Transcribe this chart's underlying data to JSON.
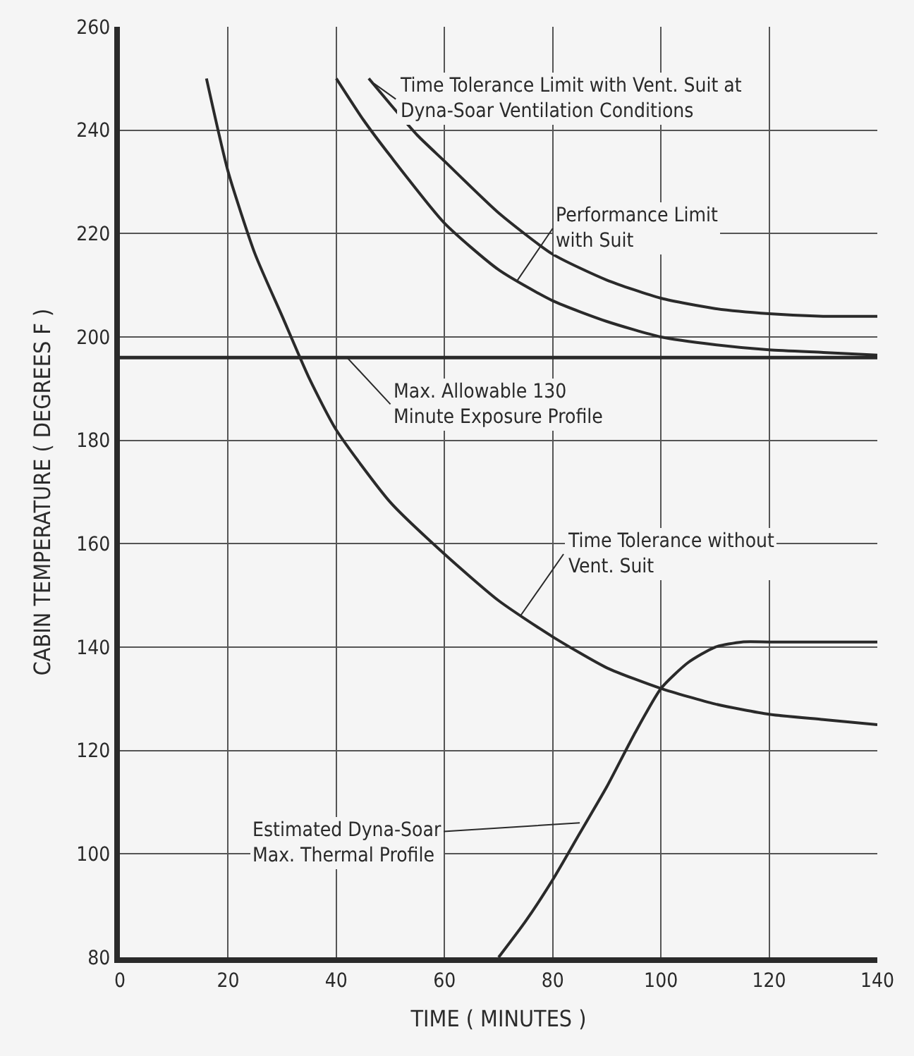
{
  "chart_data": {
    "type": "line",
    "xlabel": "TIME ( MINUTES )",
    "ylabel": "CABIN TEMPERATURE ( DEGREES F )",
    "xlim": [
      0,
      140
    ],
    "xticks": [
      0,
      20,
      40,
      60,
      80,
      100,
      120,
      140
    ],
    "ylim": [
      80,
      260
    ],
    "yticks": [
      80,
      100,
      120,
      140,
      160,
      180,
      200,
      220,
      240,
      260
    ],
    "grid": true,
    "marker": "none",
    "line_style": "solid",
    "series": [
      {
        "color": "#2a2a2a",
        "x": [
          16,
          20,
          25,
          30,
          35,
          40,
          50,
          60,
          70,
          80,
          90,
          100,
          110,
          120,
          130,
          140
        ],
        "values": [
          250,
          232,
          216,
          204,
          192,
          182,
          168,
          158,
          149,
          142,
          136,
          132,
          129,
          127,
          126,
          125
        ]
      },
      {
        "color": "#2a2a2a",
        "x": [
          40,
          45,
          50,
          60,
          70,
          80,
          90,
          100,
          110,
          120,
          130,
          140
        ],
        "values": [
          250,
          242,
          235,
          222,
          213,
          207,
          203,
          200,
          198.5,
          197.5,
          197,
          196.5
        ]
      },
      {
        "color": "#2a2a2a",
        "x": [
          46,
          50,
          55,
          60,
          70,
          80,
          90,
          100,
          110,
          120,
          130,
          140
        ],
        "values": [
          250,
          245,
          239,
          234,
          224,
          216,
          211,
          207.5,
          205.5,
          204.5,
          204,
          204
        ]
      },
      {
        "color": "#2a2a2a",
        "x": [
          70,
          75,
          80,
          85,
          90,
          95,
          100,
          105,
          110,
          115,
          120,
          130,
          140
        ],
        "values": [
          80,
          87,
          95,
          104,
          113,
          123,
          132,
          137,
          140,
          141,
          141,
          141,
          141
        ]
      }
    ],
    "ref_lines": [
      {
        "axis": "y",
        "value": 196,
        "color": "#2a2a2a"
      }
    ],
    "annotations": [
      {
        "text": "Time Tolerance Limit with Vent. Suit at\nDyna-Soar Ventilation Conditions",
        "x": 47,
        "y": 249
      },
      {
        "text": "Performance Limit\nwith Suit",
        "x": 73.5,
        "y": 211
      },
      {
        "text": "Max. Allowable 130\nMinute Exposure Profile",
        "x": 42,
        "y": 196
      },
      {
        "text": "Time Tolerance without\nVent. Suit",
        "x": 74,
        "y": 146
      },
      {
        "text": "Estimated Dyna-Soar\nMax. Thermal Profile",
        "x": 85,
        "y": 106
      }
    ]
  }
}
